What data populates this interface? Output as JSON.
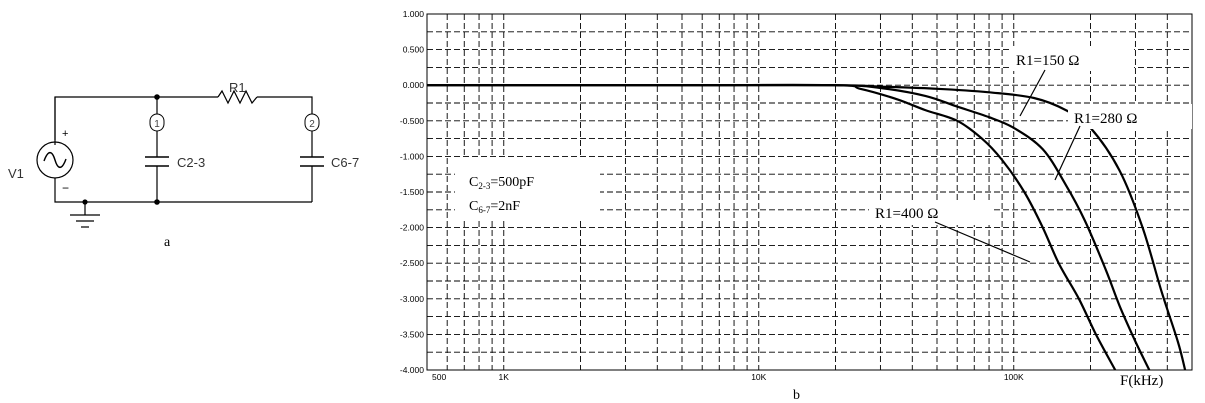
{
  "circuit": {
    "source_label": "V1",
    "source_plus": "+",
    "source_minus": "−",
    "node1": "1",
    "node2": "2",
    "resistor_label": "R1",
    "cap1_label": "C2-3",
    "cap2_label": "C6-7",
    "caption": "a"
  },
  "chart_data": {
    "type": "line",
    "caption": "b",
    "xlabel": "F(kHz)",
    "xscale": "log",
    "xlim": [
      500,
      500000
    ],
    "ylim": [
      -4.0,
      1.0
    ],
    "ytick_labels": [
      "1.000",
      "0.500",
      "0.000",
      "-0.500",
      "-1.000",
      "-1.500",
      "-2.000",
      "-2.500",
      "-3.000",
      "-3.500",
      "-4.000"
    ],
    "xtick_labels": [
      {
        "value": 500,
        "label": "500"
      },
      {
        "value": 1000,
        "label": "1K"
      },
      {
        "value": 10000,
        "label": "10K"
      },
      {
        "value": 100000,
        "label": "100K"
      }
    ],
    "grid": true,
    "params": {
      "c23_main": "C",
      "c23_sub": "2-3",
      "c23_value": "=500pF",
      "c67_main": "C",
      "c67_sub": "6-7",
      "c67_value": "=2nF"
    },
    "series": [
      {
        "name": "R1=150 Ω",
        "x": [
          500,
          5000,
          20000,
          30000,
          50000,
          80000,
          120000,
          160000,
          200000,
          260000,
          320000,
          380000,
          440000,
          470000
        ],
        "y": [
          0,
          0,
          0,
          -0.02,
          -0.05,
          -0.1,
          -0.18,
          -0.35,
          -0.6,
          -1.2,
          -2.0,
          -2.9,
          -3.6,
          -4.0
        ]
      },
      {
        "name": "R1=280 Ω",
        "x": [
          500,
          5000,
          20000,
          30000,
          45000,
          60000,
          80000,
          100000,
          130000,
          160000,
          190000,
          230000,
          260000,
          300000,
          340000
        ],
        "y": [
          0,
          0,
          0,
          -0.04,
          -0.15,
          -0.3,
          -0.45,
          -0.6,
          -0.9,
          -1.4,
          -1.9,
          -2.6,
          -3.1,
          -3.6,
          -4.0
        ]
      },
      {
        "name": "R1=400 Ω",
        "x": [
          500,
          5000,
          20000,
          25000,
          35000,
          45000,
          60000,
          75000,
          90000,
          110000,
          130000,
          150000,
          180000,
          210000,
          250000
        ],
        "y": [
          0,
          0,
          0,
          -0.05,
          -0.2,
          -0.35,
          -0.5,
          -0.75,
          -1.05,
          -1.5,
          -2.0,
          -2.5,
          -3.0,
          -3.5,
          -4.0
        ]
      }
    ]
  }
}
